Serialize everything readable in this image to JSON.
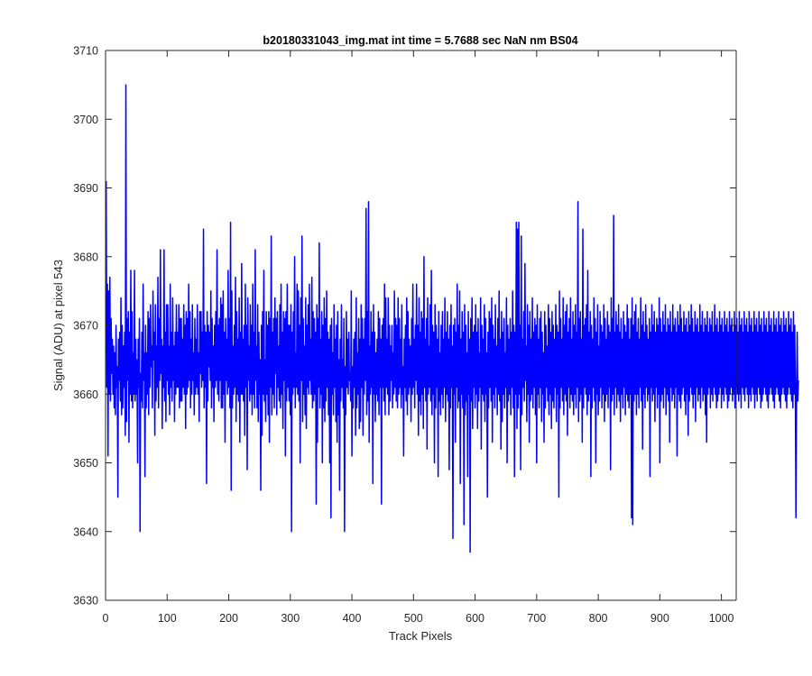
{
  "chart_data": {
    "type": "line",
    "title": "b20180331043_img.mat int time = 5.7688 sec  NaN nm BS04",
    "xlabel": "Track Pixels",
    "ylabel": "Signal (ADU) at pixel 543",
    "xlim": [
      0,
      1024
    ],
    "ylim": [
      3630,
      3710
    ],
    "xticks": [
      0,
      100,
      200,
      300,
      400,
      500,
      600,
      700,
      800,
      900,
      1000
    ],
    "yticks": [
      3630,
      3640,
      3650,
      3660,
      3670,
      3680,
      3690,
      3700,
      3710
    ],
    "grid": false,
    "legend": "none",
    "series": [
      {
        "color": "#0000ff",
        "x_start": 1,
        "x_step": 1,
        "values": [
          3691,
          3661,
          3676,
          3651,
          3675,
          3660,
          3677,
          3659,
          3671,
          3663,
          3668,
          3660,
          3667,
          3658,
          3666,
          3657,
          3670,
          3661,
          3664,
          3645,
          3668,
          3662,
          3669,
          3659,
          3674,
          3657,
          3670,
          3658,
          3667,
          3661,
          3669,
          3654,
          3705,
          3656,
          3671,
          3662,
          3672,
          3653,
          3669,
          3660,
          3678,
          3659,
          3672,
          3658,
          3666,
          3660,
          3678,
          3659,
          3668,
          3660,
          3665,
          3650,
          3668,
          3661,
          3671,
          3640,
          3663,
          3659,
          3669,
          3658,
          3676,
          3662,
          3666,
          3648,
          3670,
          3658,
          3666,
          3660,
          3672,
          3657,
          3671,
          3661,
          3673,
          3664,
          3667,
          3658,
          3675,
          3665,
          3669,
          3654,
          3673,
          3659,
          3667,
          3661,
          3677,
          3658,
          3671,
          3662,
          3681,
          3663,
          3668,
          3655,
          3667,
          3661,
          3681,
          3659,
          3669,
          3656,
          3673,
          3662,
          3673,
          3660,
          3667,
          3657,
          3676,
          3661,
          3669,
          3659,
          3674,
          3662,
          3667,
          3656,
          3669,
          3660,
          3673,
          3661,
          3669,
          3661,
          3673,
          3658,
          3671,
          3659,
          3671,
          3659,
          3668,
          3661,
          3673,
          3660,
          3670,
          3655,
          3672,
          3660,
          3671,
          3661,
          3676,
          3662,
          3672,
          3658,
          3668,
          3660,
          3673,
          3662,
          3666,
          3657,
          3671,
          3660,
          3668,
          3661,
          3673,
          3660,
          3666,
          3656,
          3672,
          3663,
          3672,
          3661,
          3669,
          3662,
          3684,
          3658,
          3670,
          3661,
          3669,
          3647,
          3672,
          3659,
          3670,
          3664,
          3669,
          3662,
          3675,
          3658,
          3671,
          3661,
          3667,
          3656,
          3670,
          3661,
          3672,
          3662,
          3681,
          3660,
          3670,
          3659,
          3671,
          3662,
          3674,
          3658,
          3673,
          3658,
          3675,
          3660,
          3669,
          3653,
          3671,
          3662,
          3668,
          3660,
          3678,
          3661,
          3671,
          3658,
          3685,
          3646,
          3675,
          3658,
          3667,
          3660,
          3670,
          3661,
          3677,
          3656,
          3672,
          3660,
          3668,
          3659,
          3674,
          3653,
          3669,
          3660,
          3679,
          3660,
          3668,
          3659,
          3670,
          3654,
          3676,
          3661,
          3670,
          3649,
          3674,
          3662,
          3667,
          3659,
          3673,
          3660,
          3670,
          3657,
          3676,
          3660,
          3669,
          3658,
          3681,
          3662,
          3667,
          3658,
          3673,
          3656,
          3669,
          3660,
          3665,
          3646,
          3670,
          3654,
          3672,
          3660,
          3678,
          3659,
          3665,
          3656,
          3672,
          3660,
          3670,
          3657,
          3672,
          3653,
          3671,
          3661,
          3683,
          3657,
          3669,
          3660,
          3671,
          3658,
          3674,
          3663,
          3671,
          3657,
          3672,
          3661,
          3667,
          3659,
          3673,
          3658,
          3676,
          3660,
          3669,
          3655,
          3672,
          3662,
          3671,
          3651,
          3672,
          3659,
          3676,
          3661,
          3670,
          3659,
          3670,
          3657,
          3673,
          3640,
          3669,
          3660,
          3672,
          3661,
          3680,
          3658,
          3666,
          3661,
          3676,
          3660,
          3675,
          3659,
          3670,
          3650,
          3674,
          3662,
          3683,
          3656,
          3671,
          3660,
          3667,
          3657,
          3674,
          3655,
          3670,
          3661,
          3673,
          3660,
          3676,
          3662,
          3668,
          3660,
          3677,
          3658,
          3672,
          3659,
          3671,
          3660,
          3669,
          3644,
          3673,
          3653,
          3671,
          3661,
          3682,
          3658,
          3668,
          3660,
          3672,
          3650,
          3670,
          3658,
          3674,
          3656,
          3671,
          3659,
          3675,
          3661,
          3669,
          3657,
          3668,
          3650,
          3670,
          3642,
          3671,
          3660,
          3666,
          3657,
          3673,
          3661,
          3668,
          3656,
          3670,
          3653,
          3672,
          3657,
          3665,
          3646,
          3668,
          3659,
          3673,
          3661,
          3665,
          3658,
          3671,
          3640,
          3664,
          3657,
          3672,
          3661,
          3668,
          3660,
          3669,
          3662,
          3663,
          3659,
          3675,
          3651,
          3664,
          3658,
          3668,
          3661,
          3669,
          3654,
          3674,
          3658,
          3666,
          3660,
          3671,
          3655,
          3668,
          3656,
          3673,
          3661,
          3671,
          3654,
          3668,
          3660,
          3671,
          3662,
          3687,
          3657,
          3672,
          3659,
          3688,
          3653,
          3667,
          3660,
          3672,
          3661,
          3669,
          3647,
          3673,
          3660,
          3669,
          3656,
          3666,
          3660,
          3668,
          3659,
          3672,
          3657,
          3671,
          3661,
          3668,
          3644,
          3670,
          3661,
          3671,
          3659,
          3676,
          3657,
          3674,
          3661,
          3668,
          3660,
          3674,
          3657,
          3670,
          3659,
          3667,
          3662,
          3670,
          3658,
          3666,
          3660,
          3675,
          3661,
          3671,
          3659,
          3670,
          3658,
          3674,
          3660,
          3671,
          3661,
          3668,
          3658,
          3673,
          3660,
          3664,
          3651,
          3668,
          3661,
          3670,
          3659,
          3674,
          3657,
          3672,
          3660,
          3668,
          3661,
          3667,
          3656,
          3671,
          3660,
          3676,
          3661,
          3668,
          3658,
          3670,
          3662,
          3676,
          3660,
          3670,
          3654,
          3674,
          3659,
          3669,
          3657,
          3672,
          3660,
          3671,
          3655,
          3680,
          3661,
          3668,
          3659,
          3671,
          3652,
          3674,
          3660,
          3667,
          3661,
          3673,
          3659,
          3678,
          3657,
          3670,
          3660,
          3669,
          3650,
          3673,
          3658,
          3670,
          3661,
          3668,
          3648,
          3672,
          3659,
          3666,
          3657,
          3670,
          3660,
          3672,
          3658,
          3668,
          3661,
          3674,
          3656,
          3669,
          3660,
          3672,
          3659,
          3668,
          3649,
          3670,
          3658,
          3673,
          3661,
          3667,
          3639,
          3670,
          3660,
          3671,
          3653,
          3669,
          3661,
          3676,
          3658,
          3670,
          3659,
          3675,
          3647,
          3668,
          3660,
          3672,
          3658,
          3669,
          3641,
          3673,
          3657,
          3670,
          3659,
          3666,
          3648,
          3672,
          3660,
          3668,
          3637,
          3671,
          3659,
          3674,
          3655,
          3669,
          3661,
          3670,
          3658,
          3673,
          3660,
          3669,
          3655,
          3671,
          3659,
          3666,
          3661,
          3674,
          3652,
          3670,
          3660,
          3668,
          3659,
          3673,
          3656,
          3671,
          3660,
          3666,
          3645,
          3669,
          3658,
          3672,
          3661,
          3671,
          3659,
          3674,
          3653,
          3670,
          3660,
          3668,
          3658,
          3673,
          3661,
          3667,
          3657,
          3671,
          3660,
          3675,
          3659,
          3668,
          3652,
          3672,
          3656,
          3669,
          3660,
          3671,
          3658,
          3666,
          3661,
          3674,
          3650,
          3670,
          3659,
          3668,
          3660,
          3671,
          3657,
          3669,
          3661,
          3675,
          3658,
          3670,
          3648,
          3669,
          3660,
          3685,
          3655,
          3684,
          3658,
          3685,
          3660,
          3670,
          3649,
          3683,
          3657,
          3668,
          3661,
          3672,
          3659,
          3679,
          3662,
          3667,
          3656,
          3673,
          3660,
          3670,
          3653,
          3672,
          3659,
          3668,
          3660,
          3674,
          3658,
          3669,
          3661,
          3671,
          3657,
          3670,
          3650,
          3673,
          3660,
          3668,
          3658,
          3671,
          3661,
          3672,
          3656,
          3669,
          3660,
          3666,
          3653,
          3672,
          3658,
          3670,
          3661,
          3667,
          3659,
          3673,
          3657,
          3671,
          3660,
          3669,
          3655,
          3672,
          3659,
          3670,
          3658,
          3668,
          3661,
          3673,
          3656,
          3670,
          3660,
          3669,
          3645,
          3675,
          3658,
          3671,
          3661,
          3668,
          3659,
          3674,
          3657,
          3670,
          3660,
          3672,
          3659,
          3673,
          3654,
          3669,
          3661,
          3671,
          3658,
          3674,
          3660,
          3668,
          3659,
          3672,
          3657,
          3670,
          3660,
          3673,
          3658,
          3669,
          3661,
          3688,
          3656,
          3671,
          3659,
          3672,
          3660,
          3668,
          3653,
          3684,
          3658,
          3670,
          3661,
          3671,
          3660,
          3673,
          3657,
          3678,
          3659,
          3669,
          3660,
          3672,
          3648,
          3670,
          3658,
          3668,
          3661,
          3674,
          3659,
          3671,
          3650,
          3669,
          3660,
          3673,
          3657,
          3667,
          3659,
          3672,
          3661,
          3670,
          3658,
          3669,
          3660,
          3673,
          3656,
          3671,
          3659,
          3668,
          3660,
          3672,
          3658,
          3670,
          3661,
          3669,
          3649,
          3674,
          3659,
          3671,
          3660,
          3686,
          3657,
          3669,
          3661,
          3672,
          3658,
          3670,
          3660,
          3673,
          3659,
          3669,
          3656,
          3671,
          3660,
          3668,
          3658,
          3672,
          3661,
          3670,
          3657,
          3669,
          3660,
          3673,
          3659,
          3671,
          3658,
          3668,
          3660,
          3671,
          3642,
          3674,
          3641,
          3670,
          3659,
          3672,
          3660,
          3673,
          3657,
          3669,
          3660,
          3671,
          3658,
          3668,
          3661,
          3674,
          3659,
          3670,
          3652,
          3672,
          3660,
          3669,
          3658,
          3673,
          3661,
          3670,
          3659,
          3668,
          3660,
          3671,
          3648,
          3669,
          3661,
          3673,
          3659,
          3670,
          3660,
          3672,
          3656,
          3669,
          3661,
          3671,
          3658,
          3670,
          3660,
          3674,
          3650,
          3671,
          3659,
          3669,
          3660,
          3672,
          3658,
          3670,
          3661,
          3673,
          3657,
          3669,
          3660,
          3671,
          3659,
          3670,
          3653,
          3672,
          3661,
          3669,
          3659,
          3673,
          3660,
          3670,
          3658,
          3671,
          3661,
          3669,
          3651,
          3672,
          3660,
          3670,
          3659,
          3673,
          3658,
          3671,
          3660,
          3669,
          3661,
          3672,
          3659,
          3670,
          3657,
          3671,
          3660,
          3669,
          3654,
          3672,
          3659,
          3670,
          3661,
          3673,
          3660,
          3671,
          3658,
          3669,
          3660,
          3672,
          3656,
          3670,
          3661,
          3671,
          3659,
          3669,
          3660,
          3673,
          3658,
          3670,
          3661,
          3672,
          3659,
          3669,
          3660,
          3671,
          3657,
          3670,
          3653,
          3672,
          3660,
          3669,
          3661,
          3671,
          3658,
          3670,
          3660,
          3672,
          3659,
          3669,
          3661,
          3673,
          3660,
          3670,
          3658,
          3671,
          3659,
          3669,
          3660,
          3672,
          3661,
          3670,
          3658,
          3671,
          3660,
          3669,
          3659,
          3672,
          3661,
          3670,
          3660,
          3671,
          3658,
          3669,
          3659,
          3672,
          3660,
          3670,
          3661,
          3671,
          3659,
          3669,
          3660,
          3672,
          3658,
          3670,
          3661,
          3671,
          3660,
          3669,
          3659,
          3672,
          3660,
          3670,
          3658,
          3671,
          3661,
          3669,
          3660,
          3672,
          3659,
          3670,
          3661,
          3671,
          3660,
          3669,
          3658,
          3672,
          3660,
          3670,
          3659,
          3671,
          3661,
          3669,
          3660,
          3672,
          3658,
          3670,
          3660,
          3671,
          3659,
          3669,
          3661,
          3672,
          3660,
          3670,
          3658,
          3671,
          3659,
          3669,
          3660,
          3672,
          3661,
          3670,
          3660,
          3671,
          3659,
          3669,
          3658,
          3672,
          3660,
          3670,
          3661,
          3671,
          3660,
          3669,
          3659,
          3672,
          3658,
          3670,
          3660,
          3671,
          3661,
          3669,
          3660,
          3672,
          3659,
          3670,
          3658,
          3671,
          3660,
          3669,
          3661,
          3672,
          3660,
          3670,
          3659,
          3671,
          3658,
          3669,
          3660,
          3672,
          3661,
          3670,
          3660,
          3671,
          3659,
          3669,
          3658,
          3672,
          3660,
          3670,
          3661,
          3642,
          3660,
          3669,
          3659,
          3662
        ]
      }
    ]
  }
}
